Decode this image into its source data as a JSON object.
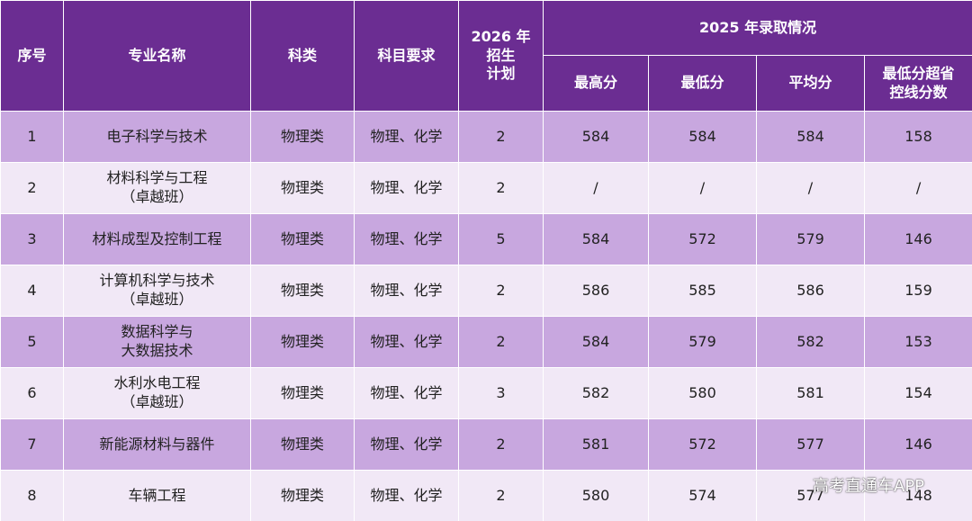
{
  "header": {
    "no": "序号",
    "major": "专业名称",
    "category": "科类",
    "subjects": "科目要求",
    "plan": "2026 年\n招生\n计划",
    "group": "2025 年录取情况",
    "max": "最高分",
    "min": "最低分",
    "avg": "平均分",
    "over": "最低分超省\n控线分数"
  },
  "table": {
    "rows": [
      [
        1,
        "电子科学与技术",
        "物理类",
        "物理、化学",
        2,
        584,
        584,
        584,
        158
      ],
      [
        2,
        "材料科学与工程\n（卓越班）",
        "物理类",
        "物理、化学",
        2,
        "/",
        "/",
        "/",
        "/"
      ],
      [
        3,
        "材料成型及控制工程",
        "物理类",
        "物理、化学",
        5,
        584,
        572,
        579,
        146
      ],
      [
        4,
        "计算机科学与技术\n（卓越班）",
        "物理类",
        "物理、化学",
        2,
        586,
        585,
        586,
        159
      ],
      [
        5,
        "数据科学与\n大数据技术",
        "物理类",
        "物理、化学",
        2,
        584,
        579,
        582,
        153
      ],
      [
        6,
        "水利水电工程\n（卓越班）",
        "物理类",
        "物理、化学",
        3,
        582,
        580,
        581,
        154
      ],
      [
        7,
        "新能源材料与器件",
        "物理类",
        "物理、化学",
        2,
        581,
        572,
        577,
        146
      ],
      [
        8,
        "车辆工程",
        "物理类",
        "物理、化学",
        2,
        580,
        574,
        577,
        148
      ]
    ]
  },
  "watermark": "高考直通车APP"
}
